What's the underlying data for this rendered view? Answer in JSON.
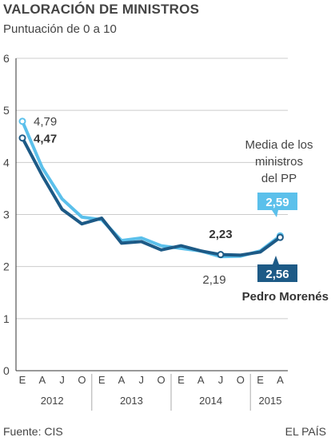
{
  "header": {
    "title": "VALORACIÓN DE MINISTROS",
    "subtitle": "Puntuación de 0 a 10"
  },
  "footer": {
    "source": "Fuente: CIS",
    "brand": "EL PAÍS"
  },
  "colors": {
    "pp_average": "#5bc0eb",
    "morenes": "#1d5a86",
    "axis": "#333333",
    "grid": "#cccccc"
  },
  "chart_data": {
    "type": "line",
    "title": "VALORACIÓN DE MINISTROS",
    "subtitle": "Puntuación de 0 a 10",
    "ylim": [
      0,
      6
    ],
    "yticks": [
      0,
      1,
      2,
      3,
      4,
      5,
      6
    ],
    "x": [
      "2012-01",
      "2012-04",
      "2012-07",
      "2012-10",
      "2013-01",
      "2013-04",
      "2013-07",
      "2013-10",
      "2014-01",
      "2014-04",
      "2014-07",
      "2014-10",
      "2015-01",
      "2015-04"
    ],
    "xtick_labels": [
      "E",
      "A",
      "J",
      "O",
      "E",
      "A",
      "J",
      "O",
      "E",
      "A",
      "J",
      "O",
      "E",
      "A"
    ],
    "year_labels": [
      "2012",
      "2013",
      "2014",
      "2015"
    ],
    "series": [
      {
        "name": "Media de los ministros del PP",
        "values": [
          4.79,
          3.9,
          3.3,
          2.95,
          2.9,
          2.5,
          2.55,
          2.4,
          2.35,
          2.3,
          2.19,
          2.2,
          2.3,
          2.59
        ]
      },
      {
        "name": "Pedro Morenés",
        "values": [
          4.47,
          3.75,
          3.1,
          2.82,
          2.93,
          2.45,
          2.48,
          2.32,
          2.4,
          2.3,
          2.23,
          2.22,
          2.28,
          2.56
        ]
      }
    ],
    "annotations": {
      "pp_start": "4,79",
      "morenes_start": "4,47",
      "pp_end": "2,59",
      "morenes_end": "2,56",
      "morenes_point": "2,23",
      "pp_point": "2,19",
      "pp_label_lines": [
        "Media de los",
        "ministros",
        "del PP"
      ],
      "morenes_label": "Pedro Morenés"
    }
  }
}
